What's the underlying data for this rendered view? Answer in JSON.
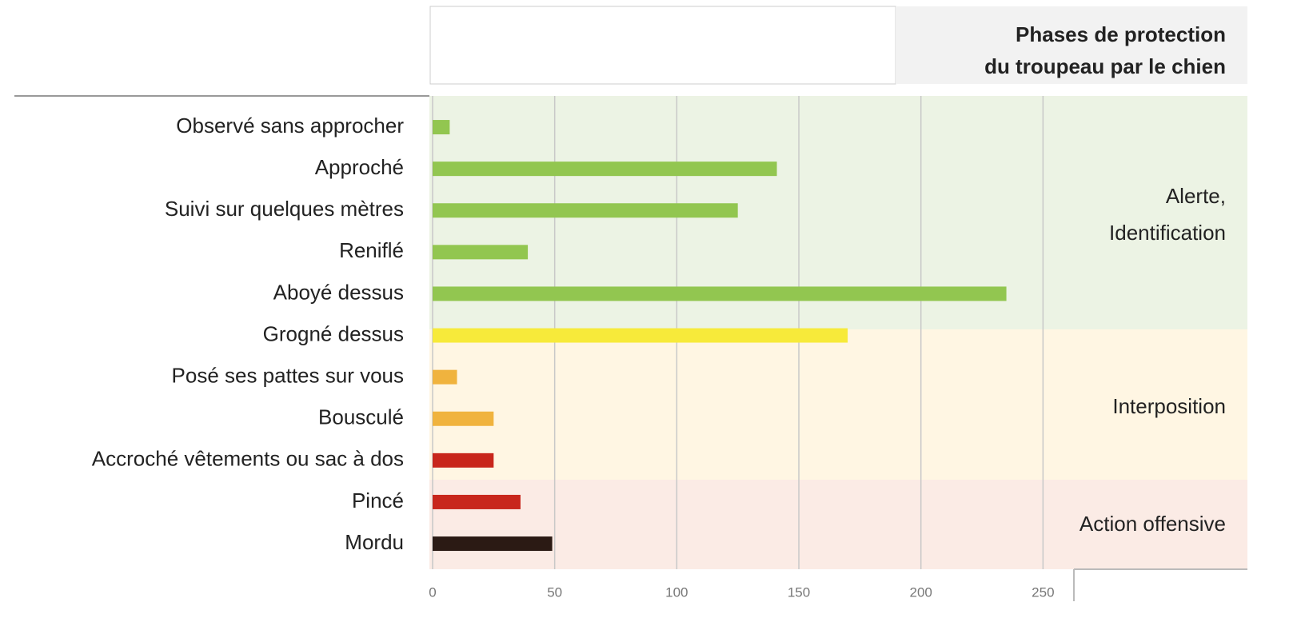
{
  "chart_data": {
    "type": "bar",
    "orientation": "horizontal",
    "header_lines": [
      "Phases de protection",
      "du troupeau par le chien"
    ],
    "categories": [
      "Observé sans approcher",
      "Approché",
      "Suivi sur quelques mètres",
      "Reniflé",
      "Aboyé dessus",
      "Grogné dessus",
      "Posé ses pattes sur vous",
      "Bousculé",
      "Accroché vêtements ou sac à dos",
      "Pincé",
      "Mordu"
    ],
    "values": [
      7,
      141,
      125,
      39,
      235,
      170,
      10,
      25,
      25,
      36,
      49
    ],
    "colors": [
      "#92c650",
      "#92c650",
      "#92c650",
      "#92c650",
      "#92c650",
      "#f7ea3a",
      "#f0b33e",
      "#f0b33e",
      "#c8261c",
      "#c8261c",
      "#2b1a14"
    ],
    "xlim": [
      0,
      262
    ],
    "xticks": [
      0,
      50,
      100,
      150,
      200,
      250
    ],
    "grid": true,
    "phases": [
      {
        "lines": [
          "Alerte,",
          "Identification"
        ],
        "color": "#ecf3e4"
      },
      {
        "lines": [
          "Interposition"
        ],
        "color": "#fff6e3"
      },
      {
        "lines": [
          "Action offensive"
        ],
        "color": "#fbebe5"
      }
    ]
  }
}
